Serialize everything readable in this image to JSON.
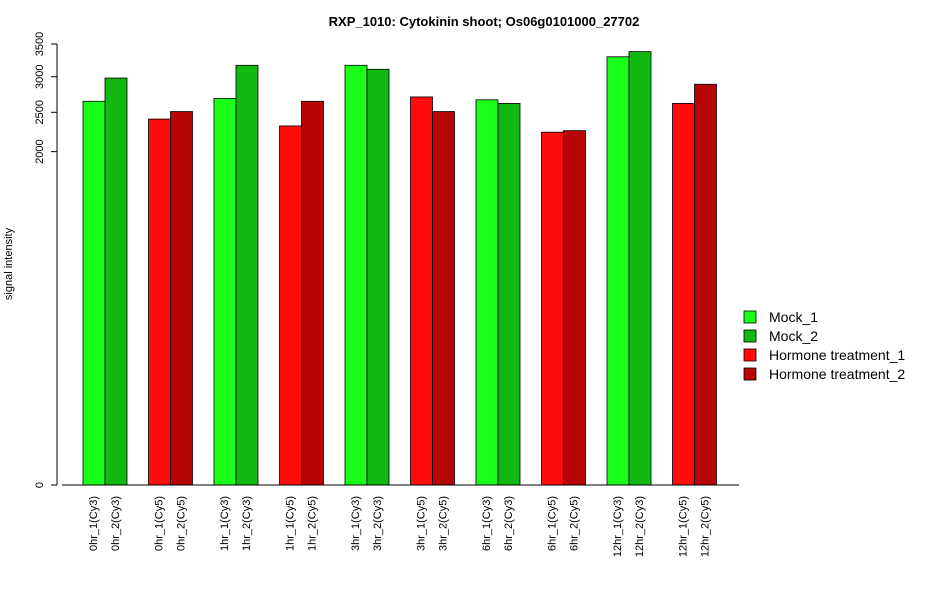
{
  "chart_data": {
    "type": "bar",
    "title": "RXP_1010: Cytokinin shoot; Os06g0101000_27702",
    "xlabel": "",
    "ylabel": "signal intensity",
    "ylim": [
      0,
      3500
    ],
    "y_scale": "sqrt",
    "y_ticks": [
      0,
      2000,
      2500,
      3000,
      3500
    ],
    "grid": false,
    "legend_position": "right",
    "groups": [
      [
        "0hr_1(Cy3)",
        "0hr_2(Cy3)"
      ],
      [
        "0hr_1(Cy5)",
        "0hr_2(Cy5)"
      ],
      [
        "1hr_1(Cy3)",
        "1hr_2(Cy3)"
      ],
      [
        "1hr_1(Cy5)",
        "1hr_2(Cy5)"
      ],
      [
        "3hr_1(Cy3)",
        "3hr_2(Cy3)"
      ],
      [
        "3hr_1(Cy5)",
        "3hr_2(Cy5)"
      ],
      [
        "6hr_1(Cy3)",
        "6hr_2(Cy3)"
      ],
      [
        "6hr_1(Cy5)",
        "6hr_2(Cy5)"
      ],
      [
        "12hr_1(Cy3)",
        "12hr_2(Cy3)"
      ],
      [
        "12hr_1(Cy5)",
        "12hr_2(Cy5)"
      ]
    ],
    "categories": [
      "0hr_1(Cy3)",
      "0hr_2(Cy3)",
      "0hr_1(Cy5)",
      "0hr_2(Cy5)",
      "1hr_1(Cy3)",
      "1hr_2(Cy3)",
      "1hr_1(Cy5)",
      "1hr_2(Cy5)",
      "3hr_1(Cy3)",
      "3hr_2(Cy3)",
      "3hr_1(Cy5)",
      "3hr_2(Cy5)",
      "6hr_1(Cy3)",
      "6hr_2(Cy3)",
      "6hr_1(Cy5)",
      "6hr_2(Cy5)",
      "12hr_1(Cy3)",
      "12hr_2(Cy3)",
      "12hr_1(Cy5)",
      "12hr_2(Cy5)"
    ],
    "values": [
      2650,
      2980,
      2410,
      2510,
      2690,
      3170,
      2320,
      2650,
      3170,
      3110,
      2710,
      2510,
      2670,
      2620,
      2240,
      2260,
      3300,
      3380,
      2620,
      2890
    ],
    "series_of_bar": [
      0,
      1,
      2,
      3,
      0,
      1,
      2,
      3,
      0,
      1,
      2,
      3,
      0,
      1,
      2,
      3,
      0,
      1,
      2,
      3
    ],
    "legend": [
      {
        "name": "Mock_1",
        "color": "#1aff1a"
      },
      {
        "name": "Mock_2",
        "color": "#10b810"
      },
      {
        "name": "Hormone treatment_1",
        "color": "#ff0d0d"
      },
      {
        "name": "Hormone treatment_2",
        "color": "#b80505"
      }
    ]
  }
}
